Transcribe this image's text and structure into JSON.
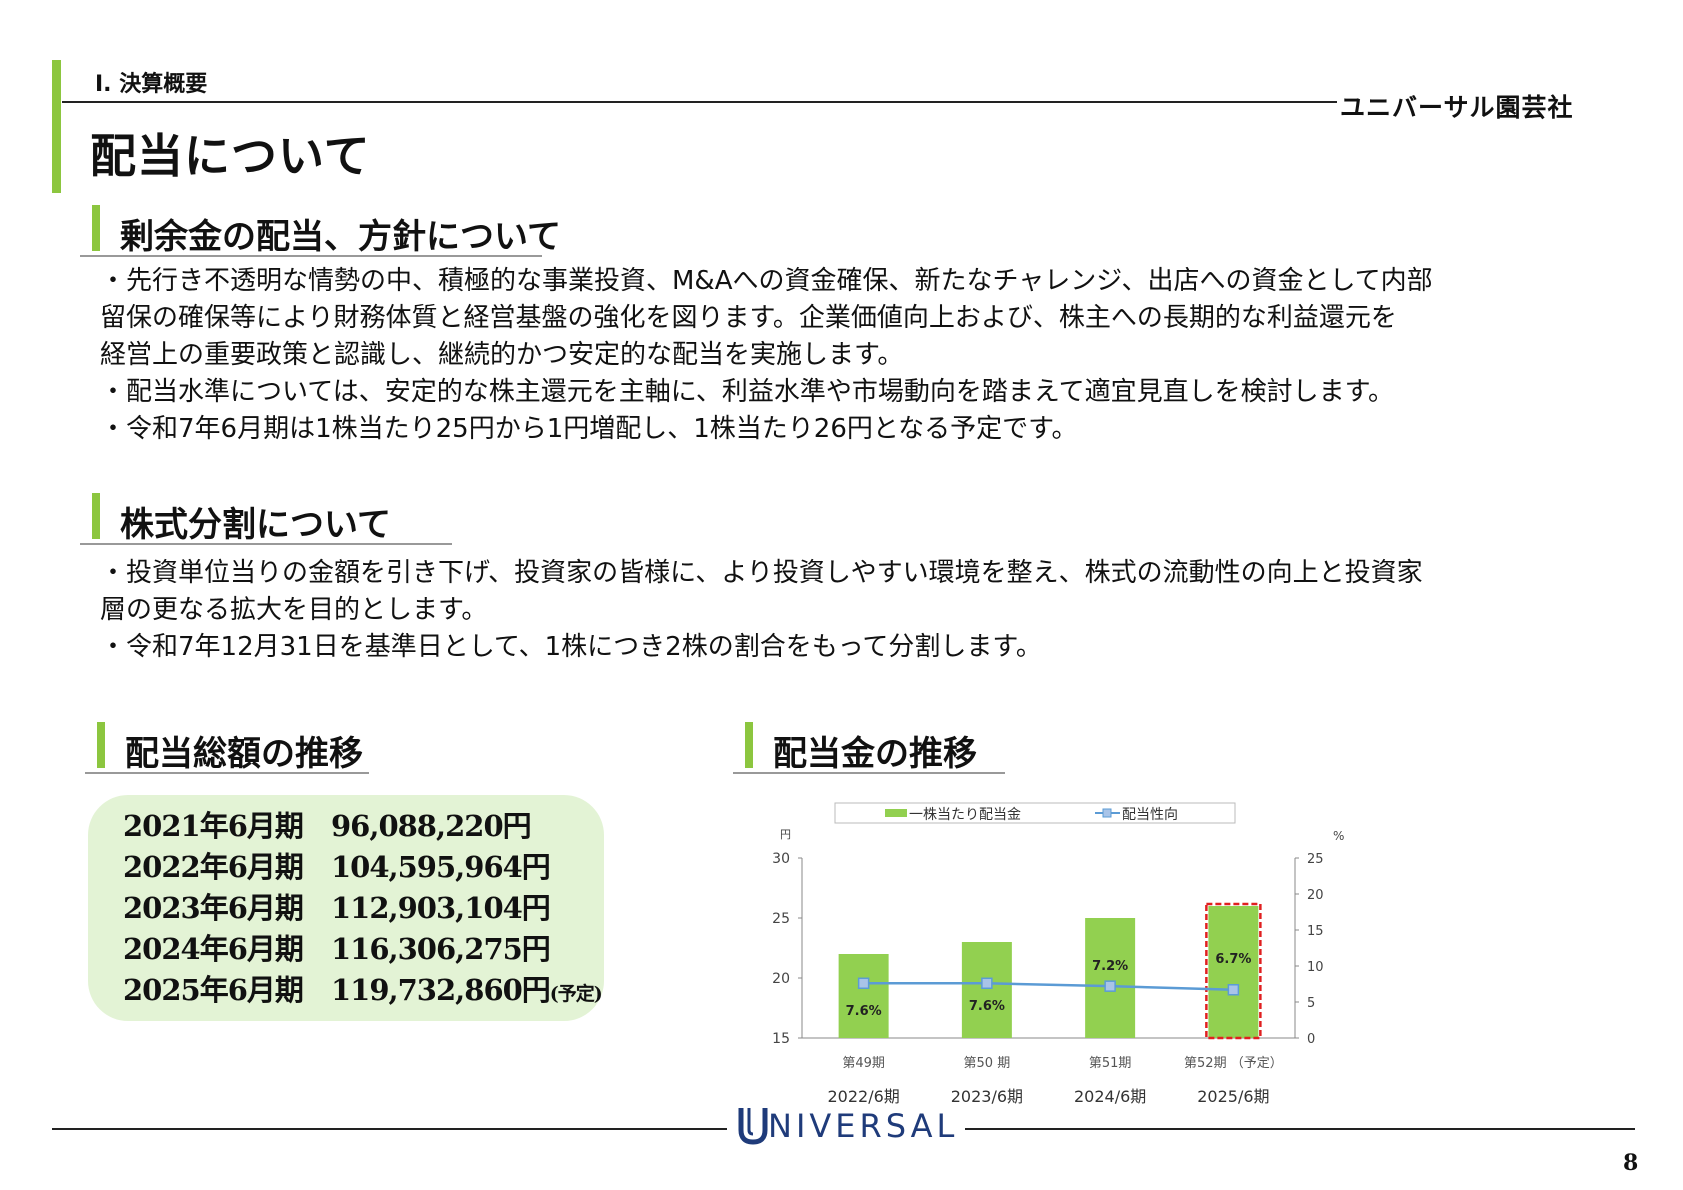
{
  "header": {
    "section": "Ⅰ. 決算概要",
    "company": "ユニバーサル園芸社",
    "title": "配当について"
  },
  "surplus": {
    "heading": "剰余金の配当、方針について",
    "lines": [
      "・先行き不透明な情勢の中、積極的な事業投資、M&Aへの資金確保、新たなチャレンジ、出店への資金として内部",
      "留保の確保等により財務体質と経営基盤の強化を図ります。企業価値向上および、株主への長期的な利益還元を",
      "経営上の重要政策と認識し、継続的かつ安定的な配当を実施します。",
      "・配当水準については、安定的な株主還元を主軸に、利益水準や市場動向を踏まえて適宜見直しを検討します。",
      "・令和7年6月期は1株当たり25円から1円増配し、1株当たり26円となる予定です。"
    ]
  },
  "split": {
    "heading": "株式分割について",
    "lines": [
      "・投資単位当りの金額を引き下げ、投資家の皆様に、より投資しやすい環境を整え、株式の流動性の向上と投資家",
      "層の更なる拡大を目的とします。",
      "・令和7年12月31日を基準日として、1株につき2株の割合をもって分割します。"
    ]
  },
  "total": {
    "heading": "配当総額の推移",
    "rows": [
      {
        "period": "2021年6月期",
        "amount": "96,088,220円",
        "note": ""
      },
      {
        "period": "2022年6月期",
        "amount": "104,595,964円",
        "note": ""
      },
      {
        "period": "2023年6月期",
        "amount": "112,903,104円",
        "note": ""
      },
      {
        "period": "2024年6月期",
        "amount": "116,306,275円",
        "note": ""
      },
      {
        "period": "2025年6月期",
        "amount": "119,732,860円",
        "note": "(予定)"
      }
    ]
  },
  "dividend": {
    "heading": "配当金の推移"
  },
  "chart_data": {
    "type": "bar",
    "categories": [
      "第49期",
      "第50 期",
      "第51期",
      "第52期 （予定）"
    ],
    "periods": [
      "2022/6期",
      "2023/6期",
      "2024/6期",
      "2025/6期"
    ],
    "series": [
      {
        "name": "一株当たり配当金",
        "type": "bar",
        "axis": "left",
        "values": [
          22,
          23,
          25,
          26
        ],
        "color": "#92d050"
      },
      {
        "name": "配当性向",
        "type": "line",
        "axis": "right",
        "values": [
          7.6,
          7.6,
          7.2,
          6.7
        ],
        "color": "#5b9bd5"
      }
    ],
    "data_labels": [
      "7.6%",
      "7.6%",
      "7.2%",
      "6.7%"
    ],
    "left_axis": {
      "unit": "円",
      "ylim": [
        15,
        30
      ],
      "ticks": [
        "15",
        "20",
        "25",
        "30"
      ]
    },
    "right_axis": {
      "unit": "%",
      "ylim": [
        0,
        25
      ],
      "ticks": [
        "0",
        "5",
        "10",
        "15",
        "20",
        "25"
      ]
    },
    "highlight": "第52期 （予定）",
    "legend_position": "top"
  },
  "footer": {
    "logo_text": "NIVERSAL",
    "page": "8"
  }
}
